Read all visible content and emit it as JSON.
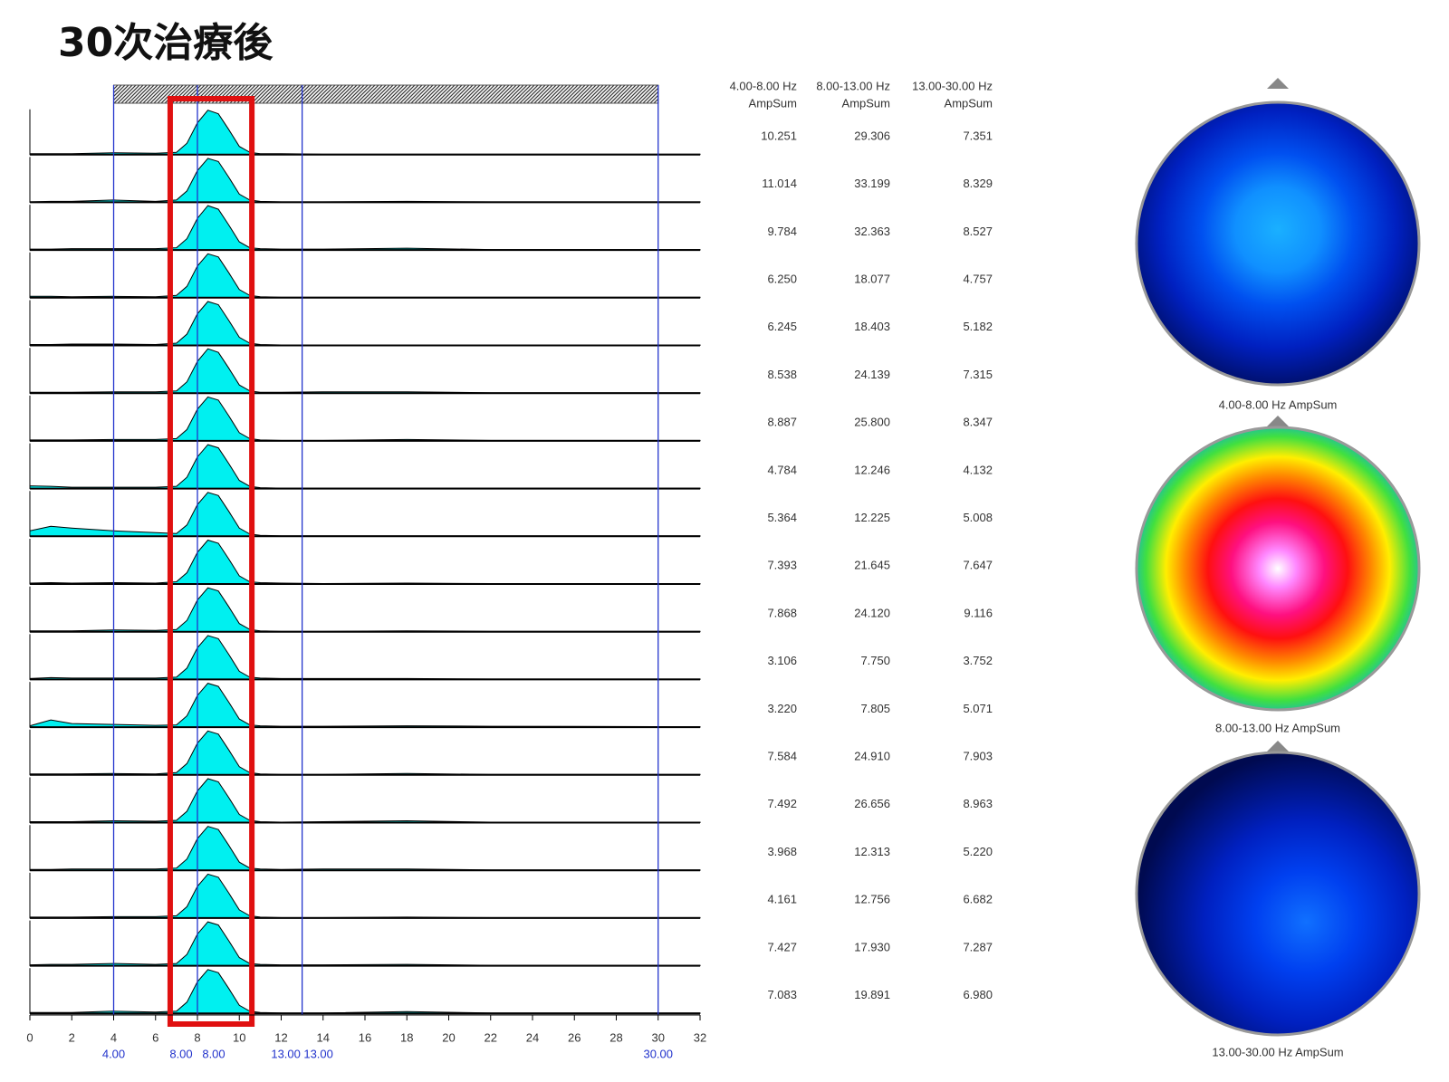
{
  "chart_data": {
    "type": "spectra",
    "title": "30次治療後",
    "xlim": [
      0,
      32
    ],
    "xticks": [
      0,
      2,
      4,
      6,
      8,
      10,
      12,
      14,
      16,
      18,
      20,
      22,
      24,
      26,
      28,
      30,
      32
    ],
    "band_markers": [
      {
        "value": 4,
        "label": "4.00"
      },
      {
        "value": 8,
        "label": "8.00"
      },
      {
        "value": 8,
        "label": "8.00"
      },
      {
        "value": 13,
        "label": "13.00"
      },
      {
        "value": 13,
        "label": "13.00"
      },
      {
        "value": 30,
        "label": "30.00"
      }
    ],
    "ylim": [
      0,
      1
    ],
    "color": "#00f0f0",
    "x": [
      0,
      1,
      2,
      4,
      6,
      7,
      7.5,
      8,
      8.5,
      9,
      9.5,
      10,
      10.5,
      11,
      12,
      14,
      18,
      22,
      32
    ],
    "series": [
      {
        "values": [
          0.02,
          0.02,
          0.02,
          0.04,
          0.03,
          0.05,
          0.25,
          0.7,
          0.98,
          0.9,
          0.55,
          0.18,
          0.05,
          0.02,
          0.02,
          0.01,
          0.01,
          0.01,
          0.01
        ]
      },
      {
        "values": [
          0.01,
          0.02,
          0.02,
          0.05,
          0.02,
          0.05,
          0.25,
          0.7,
          0.97,
          0.9,
          0.55,
          0.18,
          0.05,
          0.02,
          0.01,
          0.01,
          0.02,
          0.01,
          0.01
        ]
      },
      {
        "values": [
          0.02,
          0.02,
          0.03,
          0.03,
          0.03,
          0.05,
          0.25,
          0.7,
          0.98,
          0.9,
          0.55,
          0.18,
          0.05,
          0.03,
          0.02,
          0.02,
          0.04,
          0.01,
          0.01
        ]
      },
      {
        "values": [
          0.03,
          0.03,
          0.02,
          0.03,
          0.02,
          0.05,
          0.25,
          0.7,
          0.97,
          0.9,
          0.55,
          0.18,
          0.05,
          0.02,
          0.01,
          0.01,
          0.01,
          0.01,
          0.01
        ]
      },
      {
        "values": [
          0.02,
          0.02,
          0.03,
          0.03,
          0.02,
          0.05,
          0.25,
          0.7,
          0.97,
          0.9,
          0.55,
          0.18,
          0.05,
          0.02,
          0.01,
          0.01,
          0.01,
          0.01,
          0.01
        ]
      },
      {
        "values": [
          0.02,
          0.02,
          0.02,
          0.03,
          0.03,
          0.05,
          0.25,
          0.7,
          0.98,
          0.9,
          0.55,
          0.18,
          0.05,
          0.02,
          0.02,
          0.03,
          0.03,
          0.01,
          0.01
        ]
      },
      {
        "values": [
          0.02,
          0.02,
          0.02,
          0.03,
          0.03,
          0.05,
          0.25,
          0.7,
          0.97,
          0.9,
          0.55,
          0.18,
          0.05,
          0.02,
          0.01,
          0.01,
          0.03,
          0.01,
          0.01
        ]
      },
      {
        "values": [
          0.06,
          0.05,
          0.03,
          0.03,
          0.03,
          0.05,
          0.25,
          0.7,
          0.97,
          0.9,
          0.55,
          0.18,
          0.05,
          0.02,
          0.01,
          0.01,
          0.01,
          0.01,
          0.01
        ]
      },
      {
        "values": [
          0.12,
          0.22,
          0.18,
          0.12,
          0.08,
          0.06,
          0.25,
          0.7,
          0.97,
          0.9,
          0.55,
          0.18,
          0.05,
          0.02,
          0.01,
          0.01,
          0.01,
          0.01,
          0.01
        ]
      },
      {
        "values": [
          0.02,
          0.03,
          0.02,
          0.03,
          0.02,
          0.05,
          0.25,
          0.7,
          0.97,
          0.9,
          0.55,
          0.18,
          0.05,
          0.03,
          0.02,
          0.01,
          0.02,
          0.01,
          0.01
        ]
      },
      {
        "values": [
          0.02,
          0.02,
          0.02,
          0.04,
          0.03,
          0.05,
          0.25,
          0.7,
          0.97,
          0.9,
          0.55,
          0.18,
          0.05,
          0.02,
          0.01,
          0.01,
          0.02,
          0.01,
          0.01
        ]
      },
      {
        "values": [
          0.02,
          0.04,
          0.03,
          0.03,
          0.03,
          0.05,
          0.25,
          0.7,
          0.97,
          0.9,
          0.55,
          0.18,
          0.05,
          0.03,
          0.02,
          0.02,
          0.02,
          0.01,
          0.01
        ]
      },
      {
        "values": [
          0.03,
          0.16,
          0.08,
          0.06,
          0.04,
          0.05,
          0.25,
          0.7,
          0.97,
          0.9,
          0.55,
          0.18,
          0.05,
          0.03,
          0.02,
          0.02,
          0.03,
          0.02,
          0.01
        ]
      },
      {
        "values": [
          0.02,
          0.02,
          0.02,
          0.03,
          0.02,
          0.05,
          0.25,
          0.7,
          0.97,
          0.9,
          0.55,
          0.18,
          0.05,
          0.02,
          0.01,
          0.01,
          0.03,
          0.01,
          0.01
        ]
      },
      {
        "values": [
          0.02,
          0.02,
          0.02,
          0.04,
          0.03,
          0.05,
          0.25,
          0.7,
          0.97,
          0.9,
          0.55,
          0.18,
          0.05,
          0.02,
          0.01,
          0.02,
          0.04,
          0.01,
          0.01
        ]
      },
      {
        "values": [
          0.02,
          0.02,
          0.03,
          0.03,
          0.03,
          0.05,
          0.25,
          0.7,
          0.97,
          0.9,
          0.55,
          0.18,
          0.05,
          0.03,
          0.02,
          0.03,
          0.03,
          0.01,
          0.01
        ]
      },
      {
        "values": [
          0.02,
          0.02,
          0.02,
          0.03,
          0.03,
          0.05,
          0.25,
          0.7,
          0.97,
          0.9,
          0.55,
          0.18,
          0.05,
          0.02,
          0.01,
          0.01,
          0.02,
          0.01,
          0.01
        ]
      },
      {
        "values": [
          0.02,
          0.03,
          0.03,
          0.05,
          0.03,
          0.05,
          0.25,
          0.7,
          0.97,
          0.9,
          0.55,
          0.18,
          0.05,
          0.03,
          0.02,
          0.02,
          0.03,
          0.01,
          0.01
        ]
      },
      {
        "values": [
          0.02,
          0.02,
          0.02,
          0.05,
          0.03,
          0.05,
          0.25,
          0.7,
          0.97,
          0.9,
          0.55,
          0.18,
          0.05,
          0.02,
          0.01,
          0.01,
          0.04,
          0.01,
          0.01
        ]
      }
    ]
  },
  "table": {
    "headers": [
      [
        "4.00-8.00 Hz",
        "AmpSum"
      ],
      [
        "8.00-13.00 Hz",
        "AmpSum"
      ],
      [
        "13.00-30.00 Hz",
        "AmpSum"
      ]
    ],
    "rows": [
      [
        "10.251",
        "29.306",
        "7.351"
      ],
      [
        "11.014",
        "33.199",
        "8.329"
      ],
      [
        "9.784",
        "32.363",
        "8.527"
      ],
      [
        "6.250",
        "18.077",
        "4.757"
      ],
      [
        "6.245",
        "18.403",
        "5.182"
      ],
      [
        "8.538",
        "24.139",
        "7.315"
      ],
      [
        "8.887",
        "25.800",
        "8.347"
      ],
      [
        "4.784",
        "12.246",
        "4.132"
      ],
      [
        "5.364",
        "12.225",
        "5.008"
      ],
      [
        "7.393",
        "21.645",
        "7.647"
      ],
      [
        "7.868",
        "24.120",
        "9.116"
      ],
      [
        "3.106",
        "7.750",
        "3.752"
      ],
      [
        "3.220",
        "7.805",
        "5.071"
      ],
      [
        "7.584",
        "24.910",
        "7.903"
      ],
      [
        "7.492",
        "26.656",
        "8.963"
      ],
      [
        "3.968",
        "12.313",
        "5.220"
      ],
      [
        "4.161",
        "12.756",
        "6.682"
      ],
      [
        "7.427",
        "17.930",
        "7.287"
      ],
      [
        "7.083",
        "19.891",
        "6.980"
      ]
    ]
  },
  "maps": [
    {
      "caption": "4.00-8.00 Hz AmpSum"
    },
    {
      "caption": "8.00-13.00 Hz AmpSum"
    },
    {
      "caption": "13.00-30.00 Hz AmpSum"
    }
  ]
}
